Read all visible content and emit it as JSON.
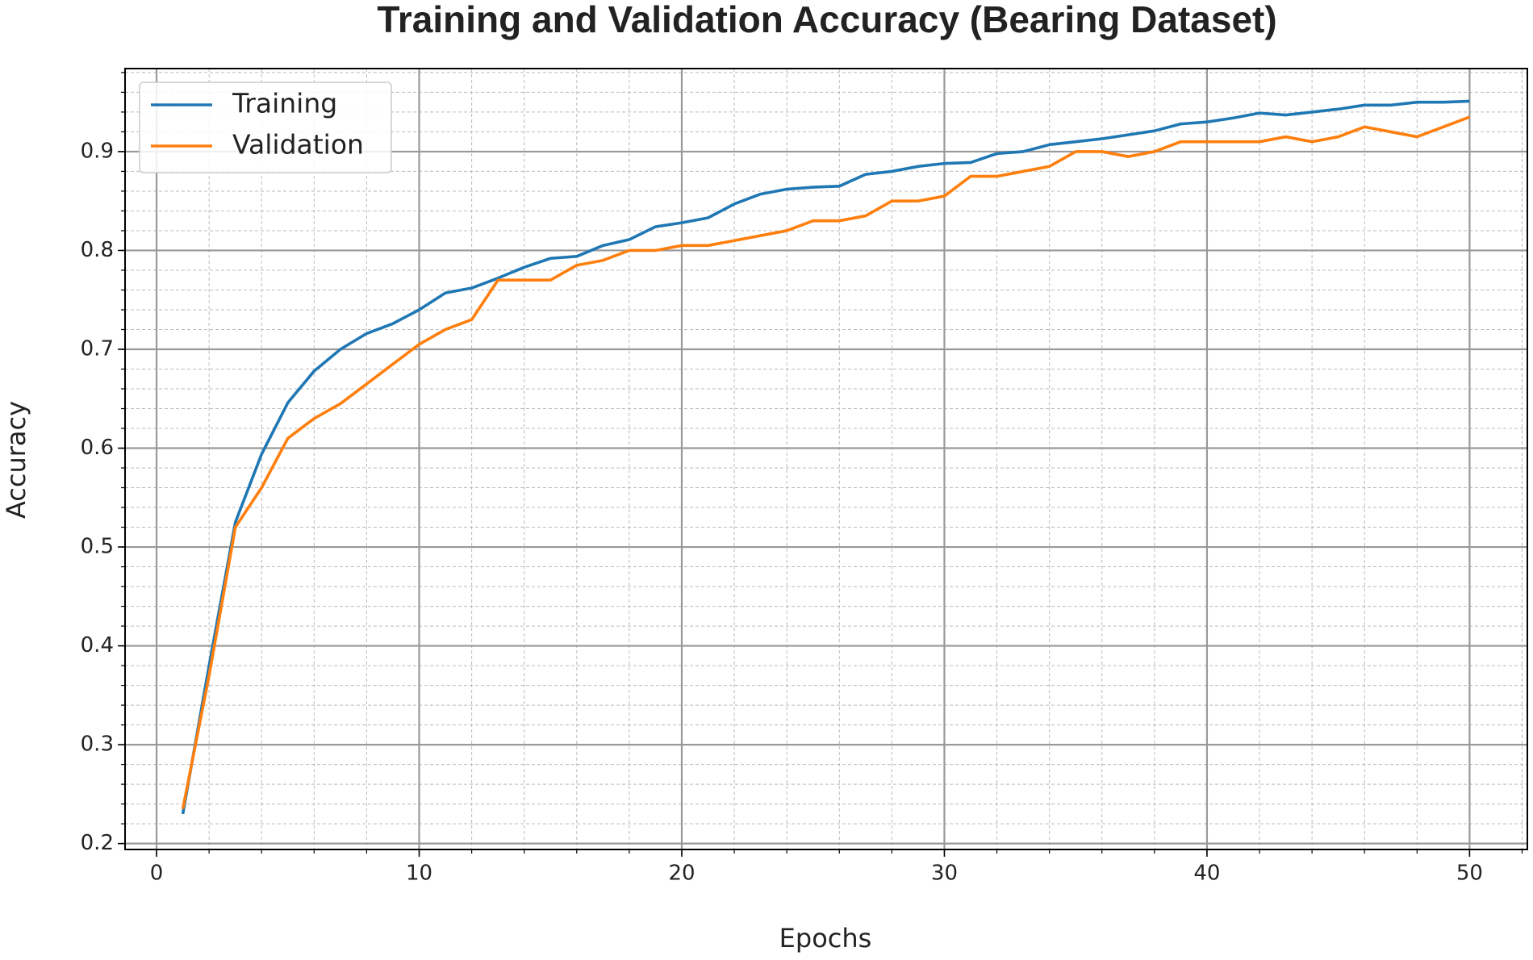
{
  "chart_data": {
    "type": "line",
    "title": "Training and Validation Accuracy (Bearing Dataset)",
    "x_label": "Epochs",
    "y_label": "Accuracy",
    "x": [
      1,
      2,
      3,
      4,
      5,
      6,
      7,
      8,
      9,
      10,
      11,
      12,
      13,
      14,
      15,
      16,
      17,
      18,
      19,
      20,
      21,
      22,
      23,
      24,
      25,
      26,
      27,
      28,
      29,
      30,
      31,
      32,
      33,
      34,
      35,
      36,
      37,
      38,
      39,
      40,
      41,
      42,
      43,
      44,
      45,
      46,
      47,
      48,
      49,
      50
    ],
    "series": [
      {
        "name": "Training",
        "color": "#1f77b4",
        "values": [
          0.23,
          0.38,
          0.525,
          0.594,
          0.646,
          0.678,
          0.7,
          0.716,
          0.726,
          0.74,
          0.757,
          0.762,
          0.772,
          0.783,
          0.792,
          0.794,
          0.805,
          0.811,
          0.824,
          0.828,
          0.833,
          0.847,
          0.857,
          0.862,
          0.864,
          0.865,
          0.877,
          0.88,
          0.885,
          0.888,
          0.889,
          0.898,
          0.9,
          0.907,
          0.91,
          0.913,
          0.917,
          0.921,
          0.928,
          0.93,
          0.934,
          0.939,
          0.937,
          0.94,
          0.943,
          0.947,
          0.947,
          0.95,
          0.95,
          0.951
        ]
      },
      {
        "name": "Validation",
        "color": "#ff7f0e",
        "values": [
          0.235,
          0.37,
          0.52,
          0.56,
          0.61,
          0.63,
          0.645,
          0.665,
          0.685,
          0.705,
          0.72,
          0.73,
          0.77,
          0.77,
          0.77,
          0.785,
          0.79,
          0.8,
          0.8,
          0.805,
          0.805,
          0.81,
          0.815,
          0.82,
          0.83,
          0.83,
          0.835,
          0.85,
          0.85,
          0.855,
          0.875,
          0.875,
          0.88,
          0.885,
          0.9,
          0.9,
          0.895,
          0.9,
          0.91,
          0.91,
          0.91,
          0.91,
          0.915,
          0.91,
          0.915,
          0.925,
          0.92,
          0.915,
          0.925,
          0.935
        ]
      }
    ],
    "xlim": [
      -1.2,
      52.2
    ],
    "xticks": [
      0,
      10,
      20,
      30,
      40,
      50
    ],
    "ylim": [
      0.194,
      0.984
    ],
    "yticks": [
      0.2,
      0.3,
      0.4,
      0.5,
      0.6,
      0.7,
      0.8,
      0.9
    ],
    "grid": true,
    "minor_grid": true,
    "legend": "upper left"
  }
}
